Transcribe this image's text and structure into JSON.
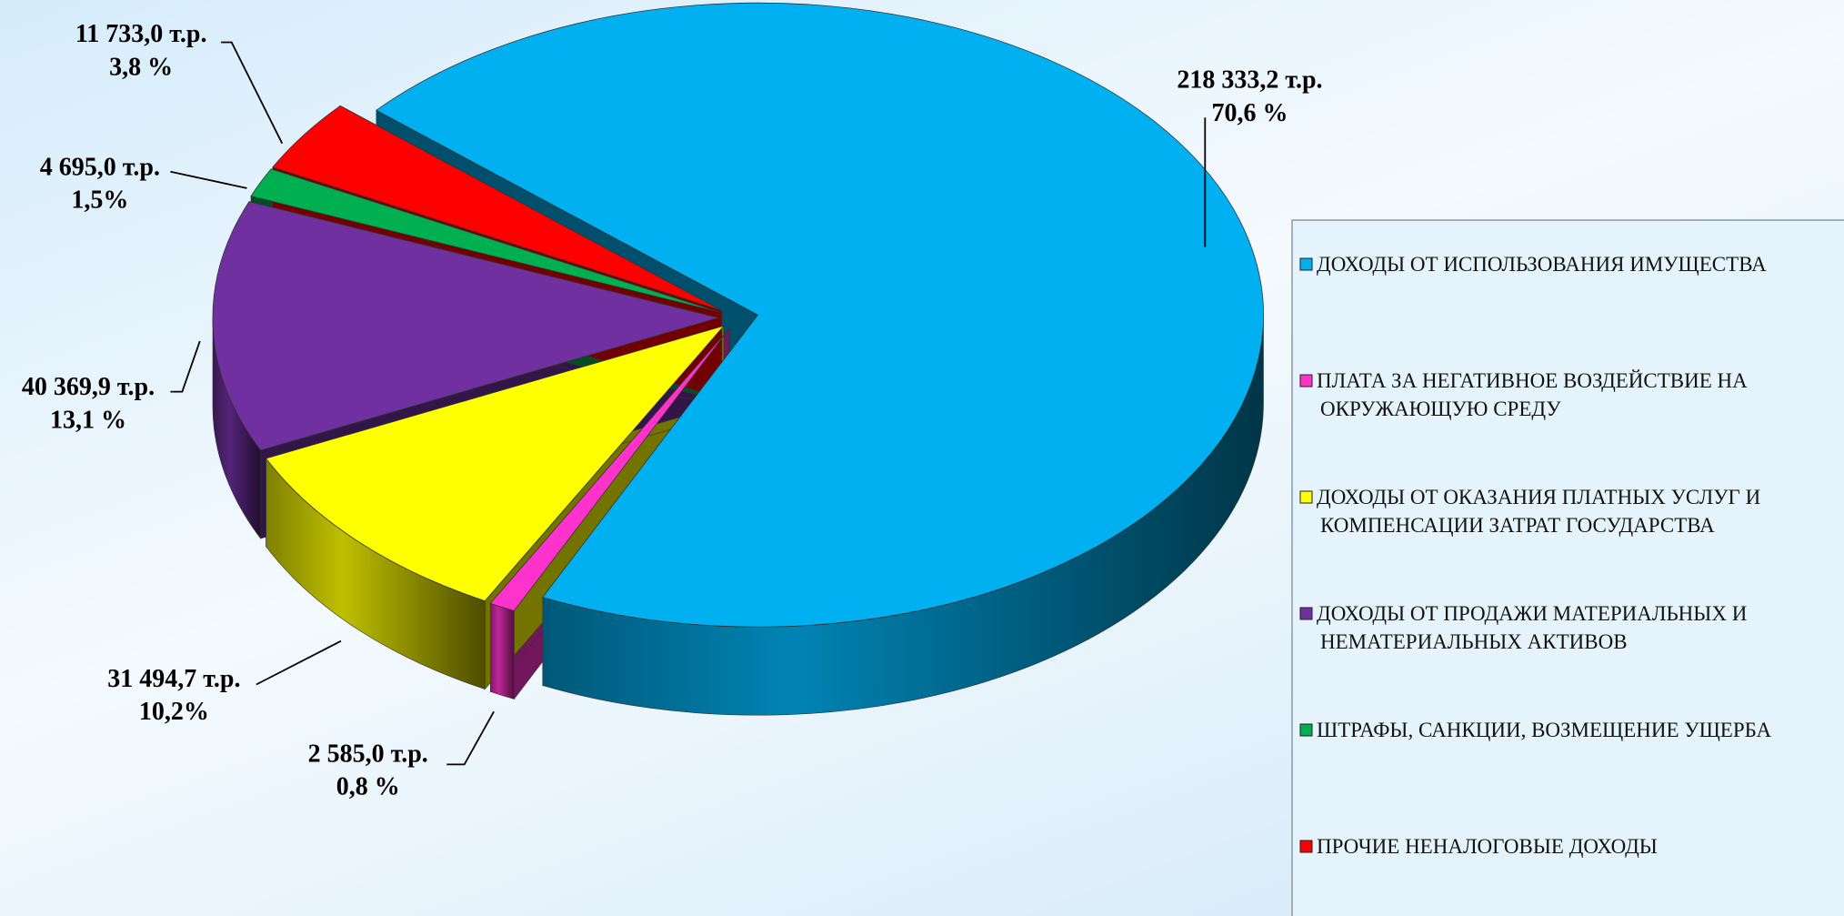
{
  "chart_data": {
    "type": "pie",
    "categories": [
      "ДОХОДЫ ОТ ИСПОЛЬЗОВАНИЯ ИМУЩЕСТВА",
      "ПЛАТА ЗА НЕГАТИВНОЕ ВОЗДЕЙСТВИЕ НА ОКРУЖАЮЩУЮ СРЕДУ",
      "ДОХОДЫ ОТ ОКАЗАНИЯ ПЛАТНЫХ УСЛУГ И КОМПЕНСАЦИИ ЗАТРАТ ГОСУДАРСТВА",
      "ДОХОДЫ ОТ ПРОДАЖИ МАТЕРИАЛЬНЫХ И НЕМАТЕРИАЛЬНЫХ АКТИВОВ",
      "ШТРАФЫ, САНКЦИИ, ВОЗМЕЩЕНИЕ УЩЕРБА",
      "ПРОЧИЕ НЕНАЛОГОВЫЕ ДОХОДЫ"
    ],
    "values": [
      218333.2,
      2585.0,
      31494.7,
      40369.9,
      4695.0,
      11733.0
    ],
    "value_labels": [
      "218 333,2 т.р.",
      "2 585,0  т.р.",
      "31 494,7 т.р.",
      "40 369,9 т.р.",
      "4 695,0 т.р.",
      "11 733,0 т.р."
    ],
    "percents": [
      70.6,
      0.8,
      10.2,
      13.1,
      1.5,
      3.8
    ],
    "percent_labels": [
      "70,6 %",
      "0,8 %",
      "10,2%",
      "13,1 %",
      "1,5%",
      "3,8 %"
    ],
    "colors": [
      "#00b0f0",
      "#ff33cc",
      "#ffff00",
      "#7030a0",
      "#00b050",
      "#ff0000"
    ],
    "legend": "right"
  }
}
